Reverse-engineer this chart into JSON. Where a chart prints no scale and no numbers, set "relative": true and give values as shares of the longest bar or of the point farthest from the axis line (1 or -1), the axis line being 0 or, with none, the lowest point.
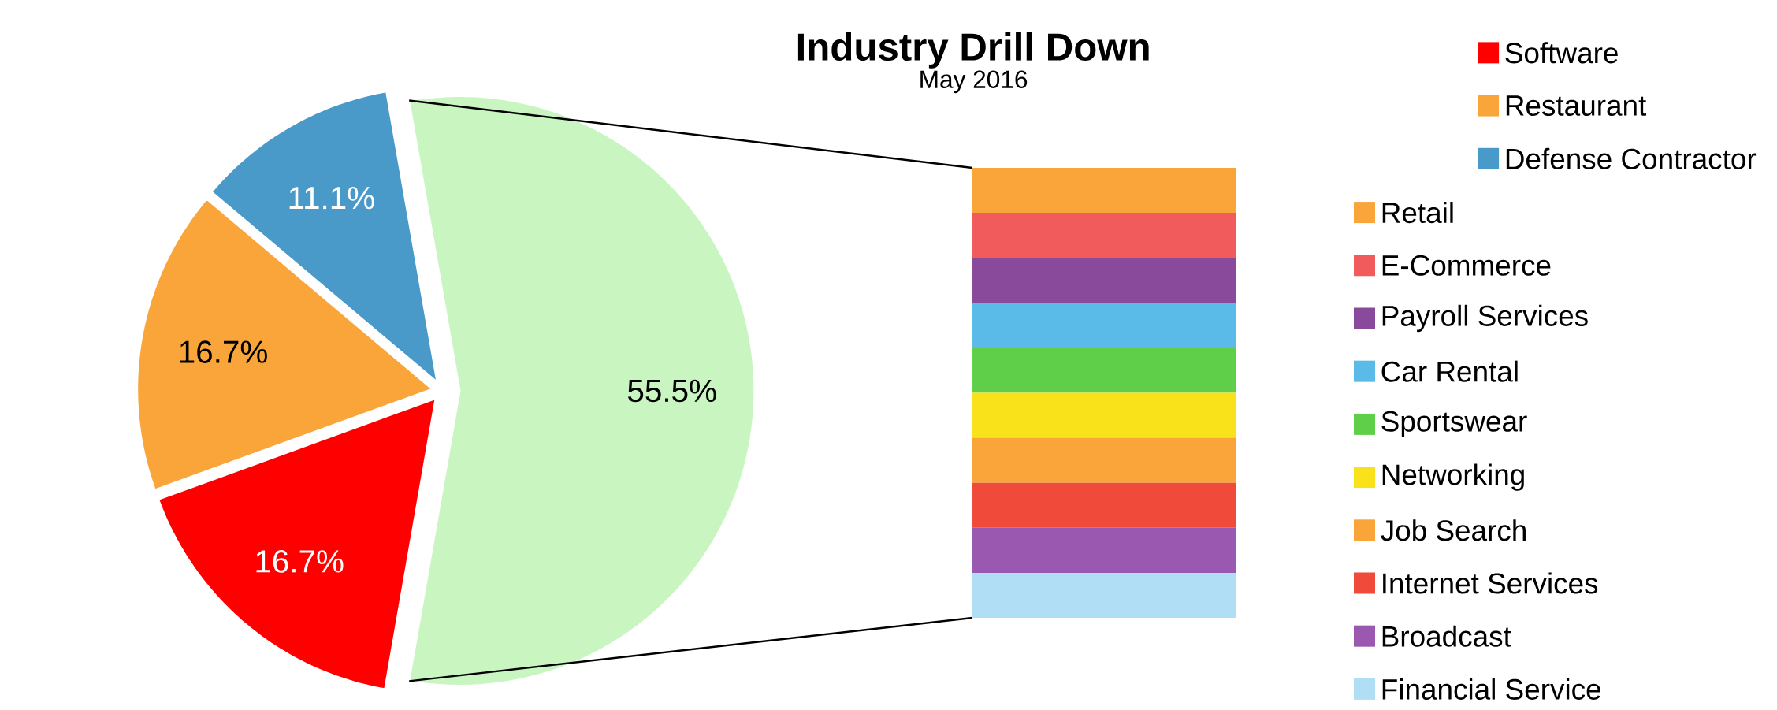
{
  "chart_data": [
    {
      "type": "pie",
      "title": "Industry Drill Down",
      "subtitle": "May 2016",
      "categories": [
        "Software",
        "Restaurant",
        "Defense Contractor",
        null
      ],
      "values": [
        16.7,
        16.7,
        11.1,
        55.5
      ],
      "colors": [
        "#ff0000",
        "#f9a53a",
        "#4a9ac9",
        "#c8f5c0"
      ],
      "value_labels": [
        "16.7%",
        "16.7%",
        "11.1%",
        "55.5%"
      ],
      "legend": "right"
    },
    {
      "type": "bar",
      "stacked": true,
      "relative": true,
      "categories": [
        null
      ],
      "legend": "right",
      "series": [
        {
          "name": "Financial Service",
          "color": "#b0dff5",
          "values": [
            0.1
          ]
        },
        {
          "name": "Broadcast",
          "color": "#9a58b0",
          "values": [
            0.1
          ]
        },
        {
          "name": "Internet Services",
          "color": "#f04a3a",
          "values": [
            0.1
          ]
        },
        {
          "name": "Job Search",
          "color": "#f9a53a",
          "values": [
            0.1
          ]
        },
        {
          "name": "Networking",
          "color": "#f9e21a",
          "values": [
            0.1
          ]
        },
        {
          "name": "Sportswear",
          "color": "#5fcf4a",
          "values": [
            0.1
          ]
        },
        {
          "name": "Car Rental",
          "color": "#5bbbe8",
          "values": [
            0.1
          ]
        },
        {
          "name": "Payroll Services",
          "color": "#8a4a9c",
          "values": [
            0.1
          ]
        },
        {
          "name": "E-Commerce",
          "color": "#f25b5b",
          "values": [
            0.1
          ]
        },
        {
          "name": "Retail",
          "color": "#f9a53a",
          "values": [
            0.1
          ]
        }
      ]
    }
  ]
}
